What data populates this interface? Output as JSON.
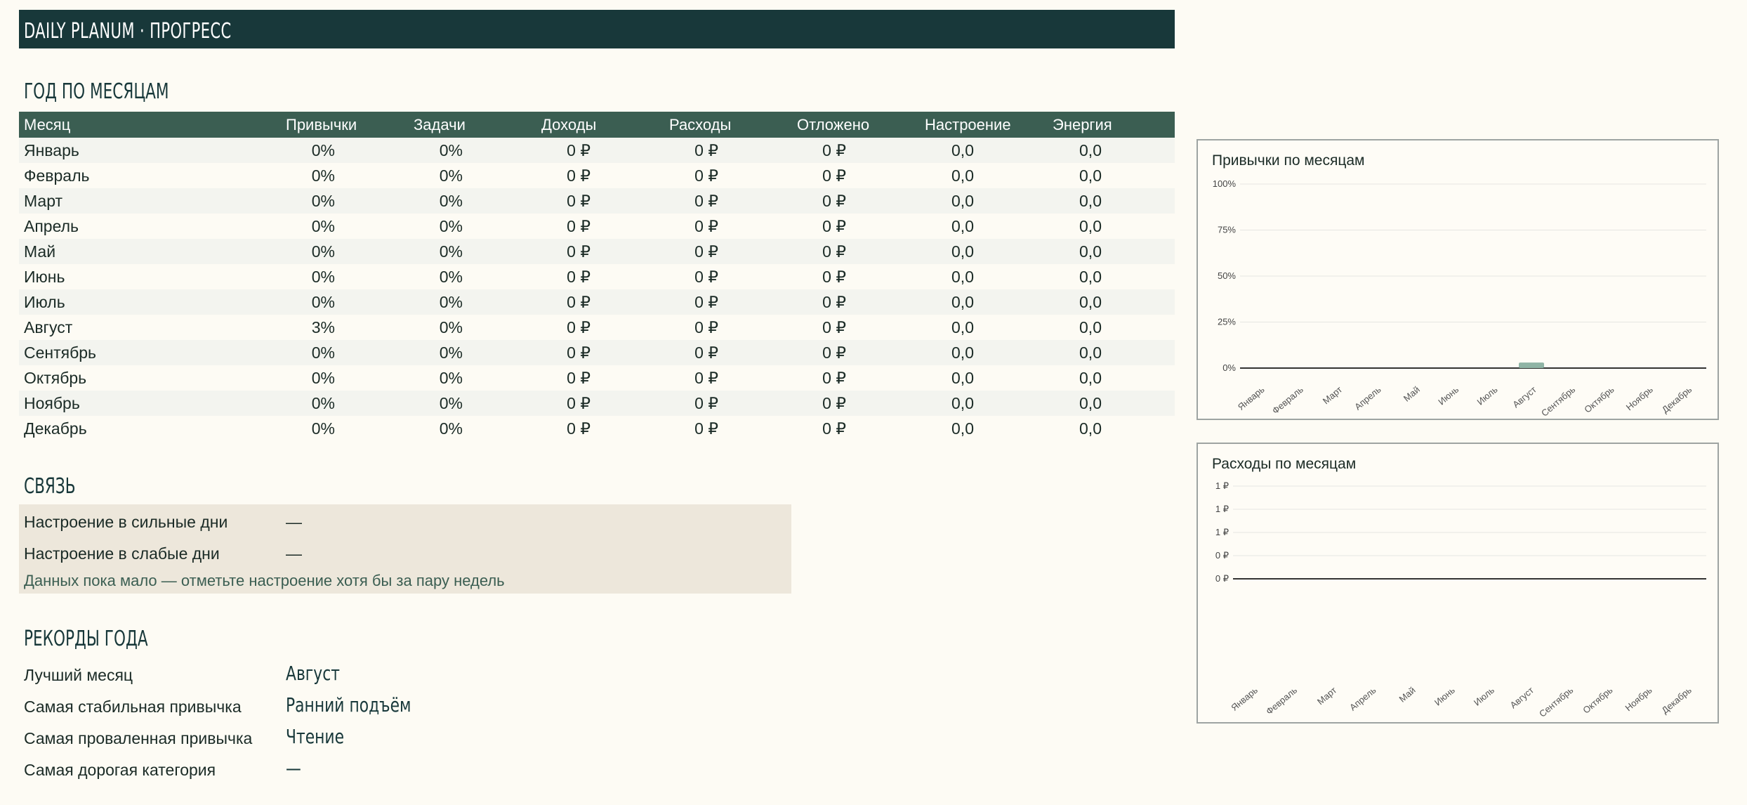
{
  "header": {
    "title": "DAILY PLANUM · ПРОГРЕСС"
  },
  "year_section": {
    "title": "ГОД ПО МЕСЯЦАМ",
    "columns": [
      "Месяц",
      "Привычки",
      "Задачи",
      "Доходы",
      "Расходы",
      "Отложено",
      "Настроение",
      "Энергия"
    ],
    "rows": [
      [
        "Январь",
        "0%",
        "0%",
        "0 ₽",
        "0 ₽",
        "0 ₽",
        "0,0",
        "0,0"
      ],
      [
        "Февраль",
        "0%",
        "0%",
        "0 ₽",
        "0 ₽",
        "0 ₽",
        "0,0",
        "0,0"
      ],
      [
        "Март",
        "0%",
        "0%",
        "0 ₽",
        "0 ₽",
        "0 ₽",
        "0,0",
        "0,0"
      ],
      [
        "Апрель",
        "0%",
        "0%",
        "0 ₽",
        "0 ₽",
        "0 ₽",
        "0,0",
        "0,0"
      ],
      [
        "Май",
        "0%",
        "0%",
        "0 ₽",
        "0 ₽",
        "0 ₽",
        "0,0",
        "0,0"
      ],
      [
        "Июнь",
        "0%",
        "0%",
        "0 ₽",
        "0 ₽",
        "0 ₽",
        "0,0",
        "0,0"
      ],
      [
        "Июль",
        "0%",
        "0%",
        "0 ₽",
        "0 ₽",
        "0 ₽",
        "0,0",
        "0,0"
      ],
      [
        "Август",
        "3%",
        "0%",
        "0 ₽",
        "0 ₽",
        "0 ₽",
        "0,0",
        "0,0"
      ],
      [
        "Сентябрь",
        "0%",
        "0%",
        "0 ₽",
        "0 ₽",
        "0 ₽",
        "0,0",
        "0,0"
      ],
      [
        "Октябрь",
        "0%",
        "0%",
        "0 ₽",
        "0 ₽",
        "0 ₽",
        "0,0",
        "0,0"
      ],
      [
        "Ноябрь",
        "0%",
        "0%",
        "0 ₽",
        "0 ₽",
        "0 ₽",
        "0,0",
        "0,0"
      ],
      [
        "Декабрь",
        "0%",
        "0%",
        "0 ₽",
        "0 ₽",
        "0 ₽",
        "0,0",
        "0,0"
      ]
    ]
  },
  "correlation": {
    "title": "СВЯЗЬ",
    "strong_label": "Настроение в сильные дни",
    "strong_value": "—",
    "weak_label": "Настроение в слабые дни",
    "weak_value": "—",
    "hint": "Данных пока мало — отметьте настроение хотя бы за пару недель"
  },
  "records": {
    "title": "РЕКОРДЫ ГОДА",
    "best_month_label": "Лучший месяц",
    "best_month_value": "Август",
    "stable_habit_label": "Самая стабильная привычка",
    "stable_habit_value": "Ранний подъём",
    "failed_habit_label": "Самая проваленная привычка",
    "failed_habit_value": "Чтение",
    "expensive_category_label": "Самая дорогая категория",
    "expensive_category_value": "—"
  },
  "colors": {
    "header_bg": "#18383a",
    "table_header_bg": "#3b5e52",
    "accent_bar": "#8fb4a5",
    "panel_bg": "#ede7db"
  },
  "chart_data": [
    {
      "type": "bar",
      "title": "Привычки по месяцам",
      "categories": [
        "Январь",
        "Февраль",
        "Март",
        "Апрель",
        "Май",
        "Июнь",
        "Июль",
        "Август",
        "Сентябрь",
        "Октябрь",
        "Ноябрь",
        "Декабрь"
      ],
      "values": [
        0,
        0,
        0,
        0,
        0,
        0,
        0,
        3,
        0,
        0,
        0,
        0
      ],
      "ylim": [
        0,
        100
      ],
      "yticks": [
        "0%",
        "25%",
        "50%",
        "75%",
        "100%"
      ],
      "grid": true
    },
    {
      "type": "bar",
      "title": "Расходы по месяцам",
      "categories": [
        "Январь",
        "Февраль",
        "Март",
        "Апрель",
        "Май",
        "Июнь",
        "Июль",
        "Август",
        "Сентябрь",
        "Октябрь",
        "Ноябрь",
        "Декабрь"
      ],
      "values": [
        0,
        0,
        0,
        0,
        0,
        0,
        0,
        0,
        0,
        0,
        0,
        0
      ],
      "ylim": [
        0,
        1
      ],
      "yticks": [
        "0 ₽",
        "0 ₽",
        "1 ₽",
        "1 ₽",
        "1 ₽"
      ],
      "grid": true
    }
  ]
}
